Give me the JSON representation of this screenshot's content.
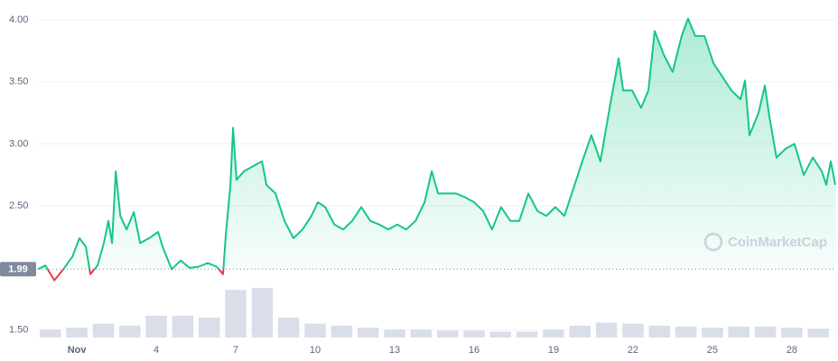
{
  "chart_data": {
    "type": "line",
    "x": [
      -0.47,
      -0.19,
      0.15,
      0.49,
      0.83,
      1.1,
      1.34,
      1.51,
      1.78,
      2.02,
      2.19,
      2.33,
      2.47,
      2.64,
      2.88,
      3.15,
      3.39,
      3.73,
      4.07,
      4.24,
      4.58,
      4.92,
      5.26,
      5.6,
      5.94,
      6.28,
      6.52,
      6.63,
      6.8,
      6.9,
      7.03,
      7.31,
      7.65,
      7.99,
      8.16,
      8.5,
      8.84,
      9.18,
      9.52,
      9.86,
      10.1,
      10.38,
      10.72,
      11.06,
      11.4,
      11.74,
      12.08,
      12.42,
      12.76,
      13.1,
      13.44,
      13.79,
      14.13,
      14.4,
      14.64,
      14.98,
      15.32,
      15.66,
      16.0,
      16.34,
      16.68,
      17.02,
      17.37,
      17.71,
      18.05,
      18.39,
      18.73,
      19.07,
      19.41,
      19.75,
      20.09,
      20.43,
      20.77,
      21.12,
      21.46,
      21.63,
      21.97,
      22.31,
      22.58,
      22.82,
      23.16,
      23.5,
      23.84,
      24.08,
      24.35,
      24.7,
      25.04,
      25.38,
      25.72,
      26.06,
      26.23,
      26.4,
      26.74,
      26.98,
      27.15,
      27.42,
      27.76,
      28.1,
      28.45,
      28.79,
      29.13,
      29.3,
      29.47,
      29.64
    ],
    "values": [
      1.99,
      2.02,
      1.9,
      1.99,
      2.09,
      2.24,
      2.17,
      1.95,
      2.02,
      2.2,
      2.38,
      2.2,
      2.78,
      2.42,
      2.31,
      2.45,
      2.2,
      2.24,
      2.29,
      2.17,
      1.99,
      2.06,
      2.0,
      2.01,
      2.04,
      2.01,
      1.95,
      2.28,
      2.67,
      3.13,
      2.71,
      2.78,
      2.82,
      2.86,
      2.67,
      2.6,
      2.38,
      2.24,
      2.31,
      2.42,
      2.53,
      2.49,
      2.35,
      2.31,
      2.38,
      2.49,
      2.38,
      2.35,
      2.31,
      2.35,
      2.31,
      2.38,
      2.53,
      2.78,
      2.6,
      2.6,
      2.6,
      2.57,
      2.53,
      2.46,
      2.31,
      2.49,
      2.38,
      2.38,
      2.6,
      2.46,
      2.42,
      2.49,
      2.42,
      2.64,
      2.86,
      3.07,
      2.86,
      3.29,
      3.69,
      3.43,
      3.43,
      3.29,
      3.43,
      3.91,
      3.72,
      3.58,
      3.87,
      4.01,
      3.87,
      3.87,
      3.65,
      3.54,
      3.43,
      3.36,
      3.51,
      3.07,
      3.25,
      3.47,
      3.22,
      2.89,
      2.96,
      3.0,
      2.75,
      2.89,
      2.78,
      2.67,
      2.86,
      2.67
    ],
    "color": "#16c784",
    "below_color": "#ea3943",
    "baseline": 1.99,
    "xlim": [
      -0.47,
      29.64
    ],
    "ylim": [
      1.41,
      4.16
    ],
    "xticks": [
      {
        "value": 1,
        "label": "Nov"
      },
      4,
      7,
      10,
      13,
      16,
      19,
      22,
      25,
      28
    ],
    "yticks": [
      {
        "value": 1.5,
        "label": "1.50"
      },
      {
        "value": 2.5,
        "label": "2.50"
      },
      {
        "value": 3,
        "label": "3.00"
      },
      {
        "value": 3.5,
        "label": "3.50"
      },
      {
        "value": 4,
        "label": "4.00"
      }
    ],
    "grid": true,
    "volume": {
      "color": "#cfd6e4",
      "x": [
        0,
        1,
        2,
        3,
        4,
        5,
        6,
        7,
        8,
        9,
        10,
        11,
        12,
        13,
        14,
        15,
        16,
        17,
        18,
        19,
        20,
        21,
        22,
        23,
        24,
        25,
        26,
        27,
        28,
        29
      ],
      "values": [
        8,
        10,
        14,
        12,
        22,
        22,
        20,
        48,
        50,
        20,
        14,
        12,
        10,
        8,
        8,
        7,
        7,
        6,
        6,
        8,
        12,
        15,
        14,
        12,
        11,
        10,
        11,
        11,
        10,
        9
      ]
    },
    "watermark": "CoinMarketCap"
  }
}
